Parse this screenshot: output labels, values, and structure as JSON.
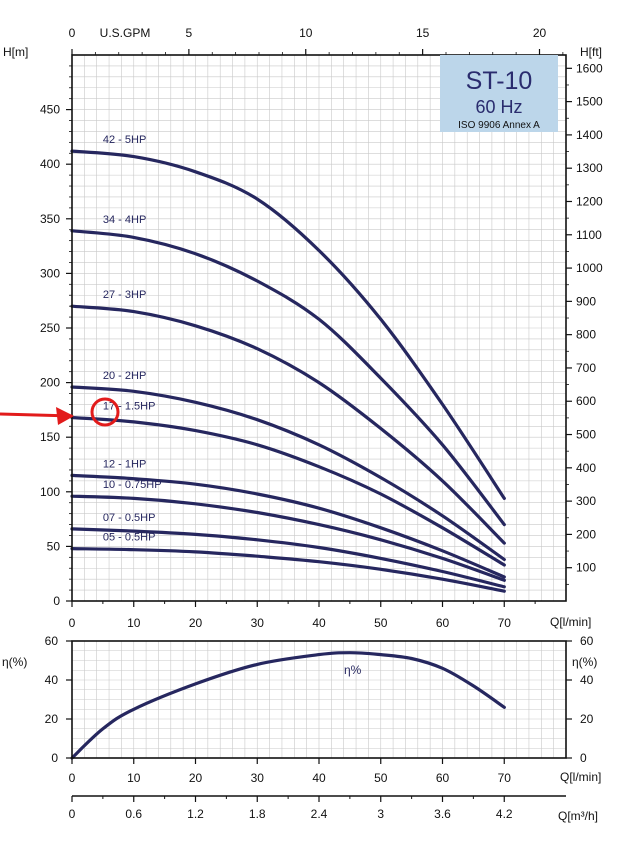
{
  "chart_data": [
    {
      "type": "line",
      "title": "ST-10",
      "subtitle": "60 Hz",
      "standard": "ISO 9906 Annex A",
      "xlabel": "Q[l/min]",
      "ylabel_left": "H[m]",
      "ylabel_right": "H[ft]",
      "top_axis_label": "U.S.GPM",
      "xlim": [
        0,
        80
      ],
      "ylim": [
        0,
        500
      ],
      "ylim_ft": [
        0,
        1640
      ],
      "x_ticks": [
        0,
        10,
        20,
        30,
        40,
        50,
        60,
        70
      ],
      "y_ticks": [
        0,
        50,
        100,
        150,
        200,
        250,
        300,
        350,
        400,
        450
      ],
      "y_ticks_ft": [
        100,
        200,
        300,
        400,
        500,
        600,
        700,
        800,
        900,
        1000,
        1100,
        1200,
        1300,
        1400,
        1500,
        1600
      ],
      "gpm_ticks": [
        0,
        5,
        10,
        15,
        20
      ],
      "grid": true,
      "line_color": "#26275f",
      "x": [
        0,
        10,
        20,
        30,
        40,
        50,
        60,
        70
      ],
      "series": [
        {
          "name": "42 - 5HP",
          "values": [
            412,
            407,
            393,
            368,
            321,
            258,
            180,
            94
          ]
        },
        {
          "name": "34 - 4HP",
          "values": [
            339,
            333,
            318,
            293,
            258,
            204,
            143,
            70
          ]
        },
        {
          "name": "27 - 3HP",
          "values": [
            270,
            265,
            252,
            231,
            200,
            158,
            110,
            53
          ]
        },
        {
          "name": "20 - 2HP",
          "values": [
            196,
            192,
            182,
            166,
            143,
            113,
            78,
            38
          ]
        },
        {
          "name": "17 - 1.5HP",
          "values": [
            168,
            164,
            156,
            143,
            123,
            98,
            67,
            33
          ]
        },
        {
          "name": "12 - 1HP",
          "values": [
            115,
            112,
            107,
            98,
            85,
            67,
            46,
            22
          ]
        },
        {
          "name": "10 - 0.75HP",
          "values": [
            96,
            94,
            89,
            81,
            70,
            56,
            39,
            19
          ]
        },
        {
          "name": "07 - 0.5HP",
          "values": [
            66,
            64,
            61,
            56,
            49,
            39,
            27,
            13
          ]
        },
        {
          "name": "05 - 0.5HP",
          "values": [
            48,
            47,
            45,
            41,
            36,
            29,
            20,
            9
          ]
        }
      ],
      "annotations": {
        "highlighted_series": "17 - 1.5HP",
        "highlight_color": "#e21b1b"
      }
    },
    {
      "type": "line",
      "xlabel": "Q[l/min]",
      "ylabel_left": "η(%)",
      "ylabel_right": "η(%)",
      "xlim": [
        0,
        80
      ],
      "ylim": [
        0,
        60
      ],
      "x_ticks": [
        0,
        10,
        20,
        30,
        40,
        50,
        60,
        70
      ],
      "y_ticks": [
        0,
        20,
        40,
        60
      ],
      "grid": true,
      "line_color": "#26275f",
      "x": [
        0,
        5,
        10,
        20,
        30,
        40,
        45,
        50,
        55,
        60,
        65,
        70
      ],
      "series": [
        {
          "name": "η%",
          "values": [
            0,
            15,
            25,
            38,
            48,
            53,
            54,
            53,
            51,
            46,
            37,
            26
          ]
        }
      ]
    },
    {
      "type": "axis",
      "xlabel": "Q[m³/h]",
      "ticks": [
        0,
        0.6,
        1.2,
        1.8,
        2.4,
        3,
        3.6,
        4.2
      ],
      "tick_labels": [
        "0",
        "0.6",
        "1.2",
        "1.8",
        "2.4",
        "3",
        "3.6",
        "4.2"
      ]
    }
  ]
}
